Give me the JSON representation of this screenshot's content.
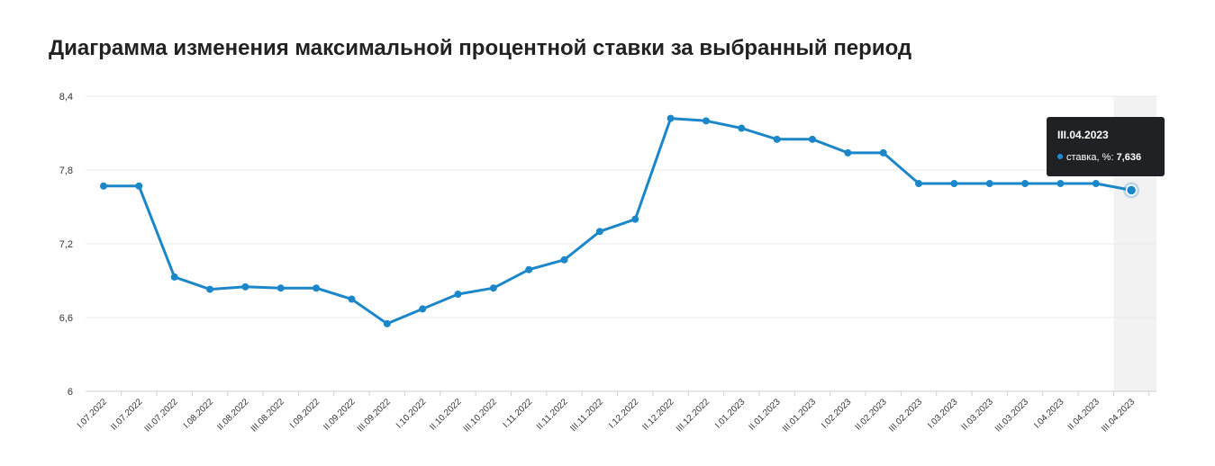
{
  "title": "Диаграмма изменения максимальной процентной ставки за выбранный период",
  "colors": {
    "line": "#1b87c9",
    "hover_band": "#f2f2f2",
    "grid": "#e8e8e8",
    "tooltip_bg": "#1f2124"
  },
  "tooltip": {
    "date": "III.04.2023",
    "series_label": "ставка, %:",
    "value": "7,636"
  },
  "chart_data": {
    "type": "line",
    "title": "Диаграмма изменения максимальной процентной ставки за выбранный период",
    "xlabel": "",
    "ylabel": "",
    "ylim": [
      6,
      8.4
    ],
    "yticks": [
      "6",
      "6,6",
      "7,2",
      "7,8",
      "8,4"
    ],
    "ytick_values": [
      6,
      6.6,
      7.2,
      7.8,
      8.4
    ],
    "grid": true,
    "legend": "none",
    "highlighted_index": 29,
    "categories": [
      "I.07.2022",
      "II.07.2022",
      "III.07.2022",
      "I.08.2022",
      "II.08.2022",
      "III.08.2022",
      "I.09.2022",
      "II.09.2022",
      "III.09.2022",
      "I.10.2022",
      "II.10.2022",
      "III.10.2022",
      "I.11.2022",
      "II.11.2022",
      "III.11.2022",
      "I.12.2022",
      "II.12.2022",
      "III.12.2022",
      "I.01.2023",
      "II.01.2023",
      "III.01.2023",
      "I.02.2023",
      "II.02.2023",
      "III.02.2023",
      "I.03.2023",
      "II.03.2023",
      "III.03.2023",
      "I.04.2023",
      "II.04.2023",
      "III.04.2023"
    ],
    "series": [
      {
        "name": "ставка, %",
        "values": [
          7.67,
          7.67,
          6.93,
          6.83,
          6.85,
          6.84,
          6.84,
          6.75,
          6.55,
          6.67,
          6.79,
          6.84,
          6.99,
          7.07,
          7.3,
          7.4,
          8.22,
          8.2,
          8.14,
          8.05,
          8.05,
          7.94,
          7.94,
          7.69,
          7.69,
          7.69,
          7.69,
          7.69,
          7.69,
          7.636
        ]
      }
    ]
  }
}
